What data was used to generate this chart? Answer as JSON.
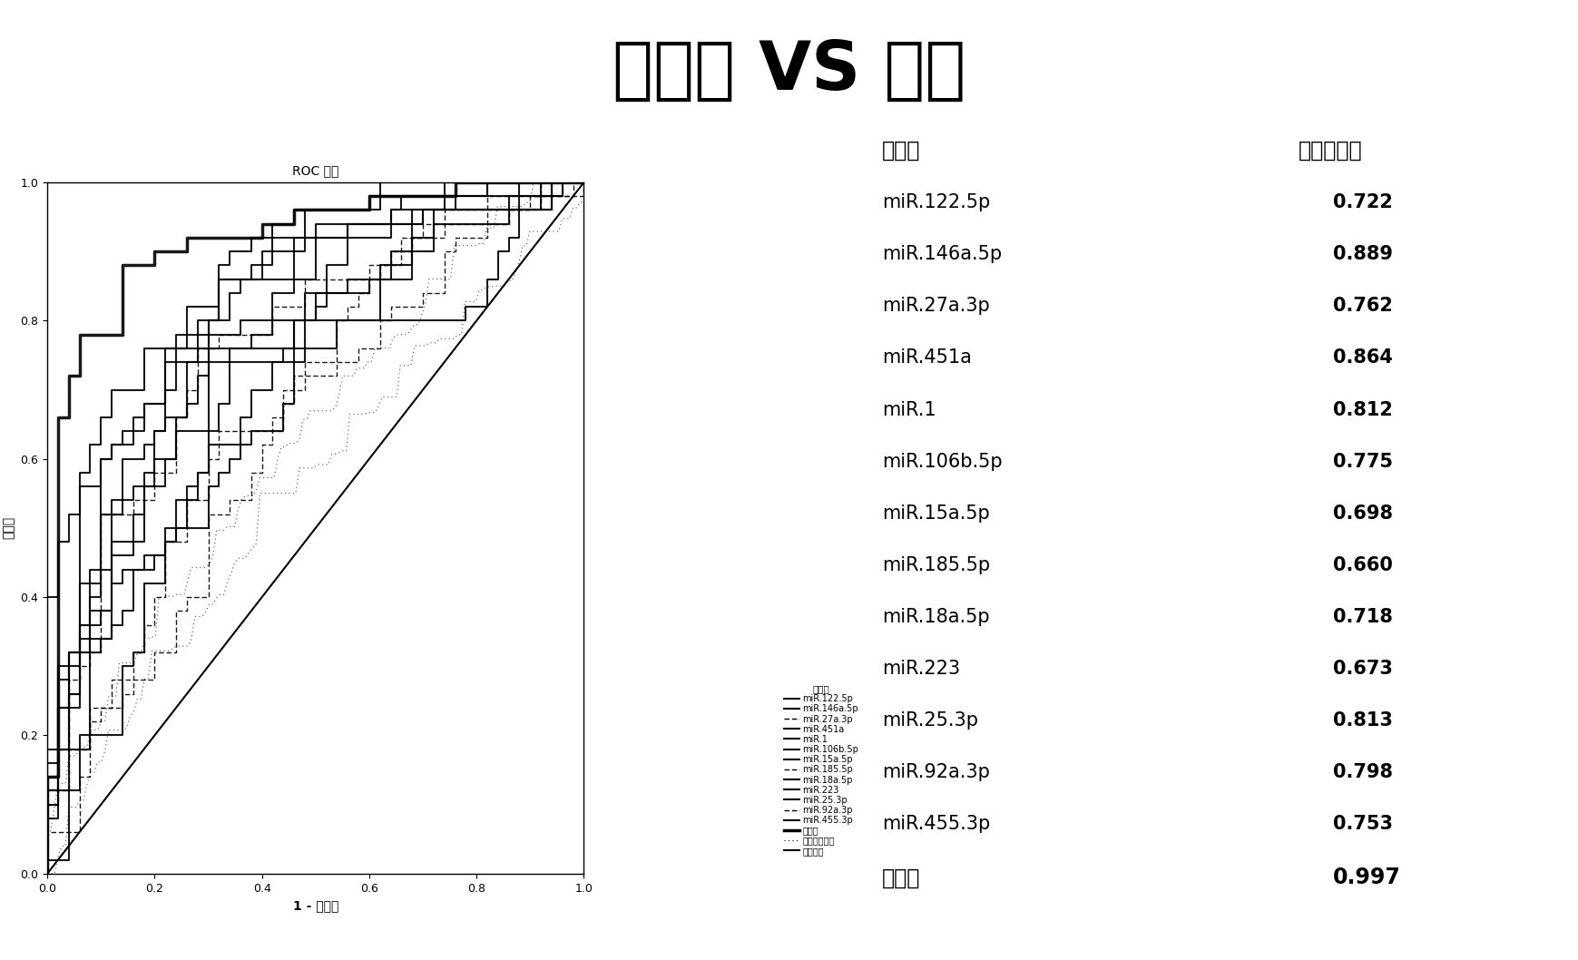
{
  "title": "肝硬化 VS 健康",
  "roc_subtitle": "ROC 曲线",
  "xlabel": "1 - 特异性",
  "ylabel": "敏感性",
  "legend_title": "曲线源",
  "table_col1": "标记物",
  "table_col2": "曲线下面积",
  "markers": [
    {
      "name": "miR.122.5p",
      "auc": 0.722,
      "linestyle": "solid",
      "linewidth": 1.5,
      "dashed": false
    },
    {
      "name": "miR.146a.5p",
      "auc": 0.889,
      "linestyle": "solid",
      "linewidth": 1.5,
      "dashed": false
    },
    {
      "name": "miR.27a.3p",
      "auc": 0.762,
      "linestyle": "dashed",
      "linewidth": 1.0,
      "dashed": true
    },
    {
      "name": "miR.451a",
      "auc": 0.864,
      "linestyle": "solid",
      "linewidth": 1.5,
      "dashed": false
    },
    {
      "name": "miR.1",
      "auc": 0.812,
      "linestyle": "solid",
      "linewidth": 1.5,
      "dashed": false
    },
    {
      "name": "miR.106b.5p",
      "auc": 0.775,
      "linestyle": "solid",
      "linewidth": 1.5,
      "dashed": false
    },
    {
      "name": "miR.15a.5p",
      "auc": 0.698,
      "linestyle": "solid",
      "linewidth": 1.5,
      "dashed": false
    },
    {
      "name": "miR.185.5p",
      "auc": 0.66,
      "linestyle": "dashed",
      "linewidth": 1.0,
      "dashed": true
    },
    {
      "name": "miR.18a.5p",
      "auc": 0.718,
      "linestyle": "solid",
      "linewidth": 1.5,
      "dashed": false
    },
    {
      "name": "miR.223",
      "auc": 0.673,
      "linestyle": "solid",
      "linewidth": 1.5,
      "dashed": false
    },
    {
      "name": "miR.25.3p",
      "auc": 0.813,
      "linestyle": "solid",
      "linewidth": 1.5,
      "dashed": false
    },
    {
      "name": "miR.92a.3p",
      "auc": 0.798,
      "linestyle": "dashed",
      "linewidth": 1.0,
      "dashed": true
    },
    {
      "name": "miR.455.3p",
      "auc": 0.753,
      "linestyle": "solid",
      "linewidth": 1.5,
      "dashed": false
    },
    {
      "name": "结合后",
      "auc": 0.997,
      "linestyle": "solid",
      "linewidth": 2.5,
      "dashed": false
    }
  ],
  "legend_extra": [
    "预测的可能性",
    "对照曲线"
  ],
  "bg_color": "#ffffff",
  "line_color": "#000000",
  "title_fontsize": 54,
  "subtitle_fontsize": 10,
  "axis_label_fontsize": 10,
  "tick_fontsize": 9,
  "legend_fontsize": 7,
  "table_header_fontsize": 17,
  "table_body_fontsize": 15,
  "table_last_fontsize": 17
}
